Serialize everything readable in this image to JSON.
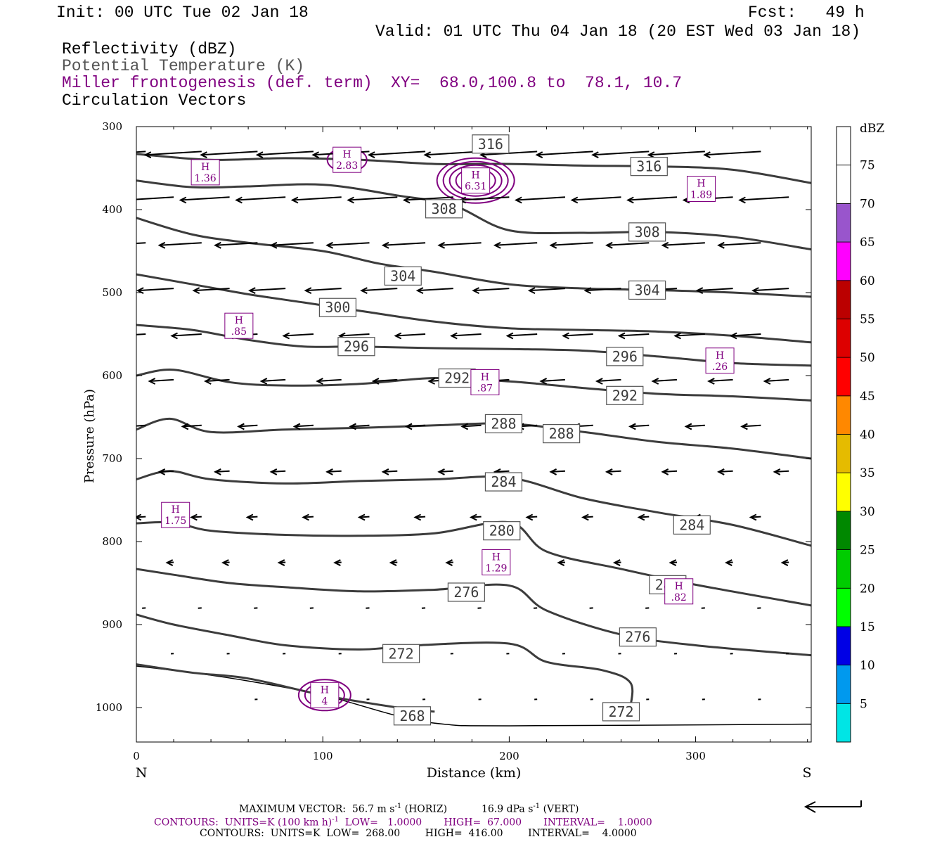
{
  "header": {
    "init": "Init: 00 UTC Tue 02 Jan 18",
    "fcst": "Fcst:   49 h",
    "valid": "Valid: 01 UTC Thu 04 Jan 18 (20 EST Wed 03 Jan 18)",
    "field1": "Reflectivity (dBZ)",
    "field2": "Potential Temperature (K)",
    "field3": "Miller frontogenesis (def. term)",
    "xy": "XY=  68.0,100.8 to  78.1, 10.7",
    "field4": "Circulation Vectors"
  },
  "chart_data": {
    "type": "line",
    "ylabel": "Pressure (hPa)",
    "xlabel": "Distance (km)",
    "x_ticks": [
      "0",
      "100",
      "200",
      "300"
    ],
    "y_ticks": [
      "300",
      "400",
      "500",
      "600",
      "700",
      "800",
      "900",
      "1000"
    ],
    "xlim": [
      0,
      362
    ],
    "ylim": [
      1040,
      300
    ],
    "left_label": "N",
    "right_label": "S",
    "colorbar": {
      "title": "dBZ",
      "levels": [
        "5",
        "10",
        "15",
        "20",
        "25",
        "30",
        "35",
        "40",
        "45",
        "50",
        "55",
        "60",
        "65",
        "70",
        "75"
      ],
      "colors": [
        "#00e5e5",
        "#0099ee",
        "#0000e5",
        "#00ff00",
        "#00cc00",
        "#008800",
        "#ffff00",
        "#e5bb00",
        "#ff8800",
        "#ff0000",
        "#dd0000",
        "#bb0000",
        "#ff00ff",
        "#9955cc",
        "#ffffff",
        "#ffffff"
      ]
    },
    "theta_contours": [
      {
        "label": "316",
        "points": [
          [
            0,
            333
          ],
          [
            40,
            340
          ],
          [
            80,
            338
          ],
          [
            120,
            340
          ],
          [
            160,
            345
          ],
          [
            200,
            345
          ],
          [
            240,
            347
          ],
          [
            280,
            348
          ],
          [
            320,
            352
          ],
          [
            362,
            368
          ]
        ],
        "labels_at": [
          [
            190,
            321
          ],
          [
            275,
            348
          ]
        ]
      },
      {
        "label": "308",
        "points": [
          [
            0,
            365
          ],
          [
            30,
            373
          ],
          [
            60,
            372
          ],
          [
            100,
            370
          ],
          [
            140,
            383
          ],
          [
            170,
            395
          ],
          [
            200,
            425
          ],
          [
            240,
            428
          ],
          [
            280,
            427
          ],
          [
            320,
            433
          ],
          [
            362,
            448
          ]
        ],
        "labels_at": [
          [
            165,
            399
          ],
          [
            274,
            427
          ]
        ]
      },
      {
        "label": "304",
        "points": [
          [
            0,
            410
          ],
          [
            30,
            430
          ],
          [
            60,
            440
          ],
          [
            100,
            450
          ],
          [
            130,
            465
          ],
          [
            160,
            475
          ],
          [
            200,
            490
          ],
          [
            240,
            495
          ],
          [
            280,
            497
          ],
          [
            320,
            500
          ],
          [
            362,
            505
          ]
        ],
        "labels_at": [
          [
            143,
            480
          ],
          [
            274,
            497
          ]
        ]
      },
      {
        "label": "300",
        "points": [
          [
            0,
            478
          ],
          [
            30,
            490
          ],
          [
            60,
            502
          ],
          [
            90,
            512
          ],
          [
            120,
            522
          ],
          [
            160,
            535
          ],
          [
            200,
            543
          ],
          [
            240,
            545
          ],
          [
            280,
            547
          ],
          [
            320,
            552
          ],
          [
            362,
            560
          ]
        ],
        "labels_at": [
          [
            108,
            518
          ]
        ]
      },
      {
        "label": "296",
        "points": [
          [
            0,
            539
          ],
          [
            30,
            545
          ],
          [
            60,
            557
          ],
          [
            90,
            565
          ],
          [
            120,
            565
          ],
          [
            160,
            567
          ],
          [
            200,
            568
          ],
          [
            240,
            570
          ],
          [
            280,
            577
          ],
          [
            320,
            585
          ],
          [
            362,
            588
          ]
        ],
        "labels_at": [
          [
            118,
            565
          ],
          [
            262,
            577
          ]
        ]
      },
      {
        "label": "292",
        "points": [
          [
            0,
            600
          ],
          [
            20,
            593
          ],
          [
            50,
            608
          ],
          [
            80,
            612
          ],
          [
            120,
            610
          ],
          [
            160,
            603
          ],
          [
            200,
            607
          ],
          [
            240,
            615
          ],
          [
            280,
            622
          ],
          [
            320,
            625
          ],
          [
            362,
            630
          ]
        ],
        "labels_at": [
          [
            172,
            603
          ],
          [
            262,
            624
          ]
        ]
      },
      {
        "label": "288",
        "points": [
          [
            0,
            665
          ],
          [
            18,
            652
          ],
          [
            40,
            668
          ],
          [
            80,
            665
          ],
          [
            120,
            663
          ],
          [
            160,
            660
          ],
          [
            200,
            658
          ],
          [
            240,
            668
          ],
          [
            280,
            680
          ],
          [
            320,
            688
          ],
          [
            362,
            700
          ]
        ],
        "labels_at": [
          [
            197,
            658
          ],
          [
            228,
            670
          ]
        ]
      },
      {
        "label": "284",
        "points": [
          [
            0,
            725
          ],
          [
            18,
            715
          ],
          [
            40,
            725
          ],
          [
            80,
            730
          ],
          [
            120,
            727
          ],
          [
            160,
            725
          ],
          [
            200,
            723
          ],
          [
            240,
            748
          ],
          [
            280,
            765
          ],
          [
            320,
            780
          ],
          [
            362,
            805
          ]
        ],
        "labels_at": [
          [
            197,
            728
          ],
          [
            298,
            780
          ]
        ]
      },
      {
        "label": "280",
        "points": [
          [
            0,
            778
          ],
          [
            20,
            777
          ],
          [
            40,
            787
          ],
          [
            80,
            792
          ],
          [
            120,
            793
          ],
          [
            160,
            790
          ],
          [
            200,
            777
          ],
          [
            220,
            812
          ],
          [
            260,
            833
          ],
          [
            300,
            852
          ],
          [
            362,
            877
          ]
        ],
        "labels_at": [
          [
            196,
            787
          ],
          [
            285,
            852
          ]
        ]
      },
      {
        "label": "276",
        "points": [
          [
            0,
            833
          ],
          [
            20,
            840
          ],
          [
            50,
            850
          ],
          [
            80,
            855
          ],
          [
            120,
            860
          ],
          [
            160,
            858
          ],
          [
            200,
            853
          ],
          [
            220,
            883
          ],
          [
            260,
            912
          ],
          [
            300,
            925
          ],
          [
            362,
            937
          ]
        ],
        "labels_at": [
          [
            177,
            861
          ],
          [
            269,
            915
          ]
        ]
      },
      {
        "label": "272",
        "points": [
          [
            0,
            888
          ],
          [
            20,
            900
          ],
          [
            50,
            913
          ],
          [
            80,
            925
          ],
          [
            120,
            930
          ],
          [
            150,
            925
          ],
          [
            200,
            923
          ],
          [
            220,
            945
          ],
          [
            250,
            955
          ],
          [
            265,
            970
          ],
          [
            265,
            1000
          ]
        ],
        "labels_at": [
          [
            142,
            935
          ],
          [
            260,
            1005
          ]
        ]
      },
      {
        "label": "268",
        "points": [
          [
            0,
            948
          ],
          [
            30,
            958
          ],
          [
            60,
            965
          ],
          [
            100,
            985
          ],
          [
            140,
            1000
          ],
          [
            160,
            1005
          ]
        ],
        "labels_at": [
          [
            148,
            1010
          ]
        ]
      }
    ],
    "frontogenesis_maxima": [
      {
        "label": "1.36",
        "x": 37,
        "p": 355
      },
      {
        "label": "2.83",
        "x": 113,
        "p": 340
      },
      {
        "label": "6.31",
        "x": 182,
        "p": 365
      },
      {
        "label": "1.89",
        "x": 303,
        "p": 375
      },
      {
        "label": ".85",
        "x": 55,
        "p": 540
      },
      {
        "label": ".26",
        "x": 313,
        "p": 582
      },
      {
        "label": ".87",
        "x": 187,
        "p": 608
      },
      {
        "label": "1.75",
        "x": 21,
        "p": 768
      },
      {
        "label": "1.29",
        "x": 193,
        "p": 825
      },
      {
        "label": ".82",
        "x": 291,
        "p": 860
      },
      {
        "label": "4",
        "x": 101,
        "p": 985
      }
    ],
    "terrain_surface": [
      [
        0,
        950
      ],
      [
        30,
        958
      ],
      [
        60,
        968
      ],
      [
        100,
        985
      ],
      [
        140,
        1010
      ],
      [
        165,
        1020
      ],
      [
        200,
        1022
      ],
      [
        362,
        1020
      ]
    ],
    "vector_scale": "56.7 m s^-1 (HORIZ) / 16.9 dPa s^-1 (VERT)"
  },
  "footer": {
    "max_vec_label": "MAXIMUM VECTOR:",
    "max_vec_horiz": "56.7 m s",
    "sup1": "-1",
    "horiz": "(HORIZ)",
    "max_vec_vert": "16.9 dPa s",
    "sup2": "-1",
    "vert": "(VERT)",
    "contours1_a": "CONTOURS:  UNITS=K (100 km h)",
    "sup3": "-1",
    "contours1_b": "  LOW=   1.0000       HIGH=  67.000       INTERVAL=    1.0000",
    "contours2": "CONTOURS:  UNITS=K  LOW=  268.00        HIGH=  416.00        INTERVAL=    4.0000"
  }
}
